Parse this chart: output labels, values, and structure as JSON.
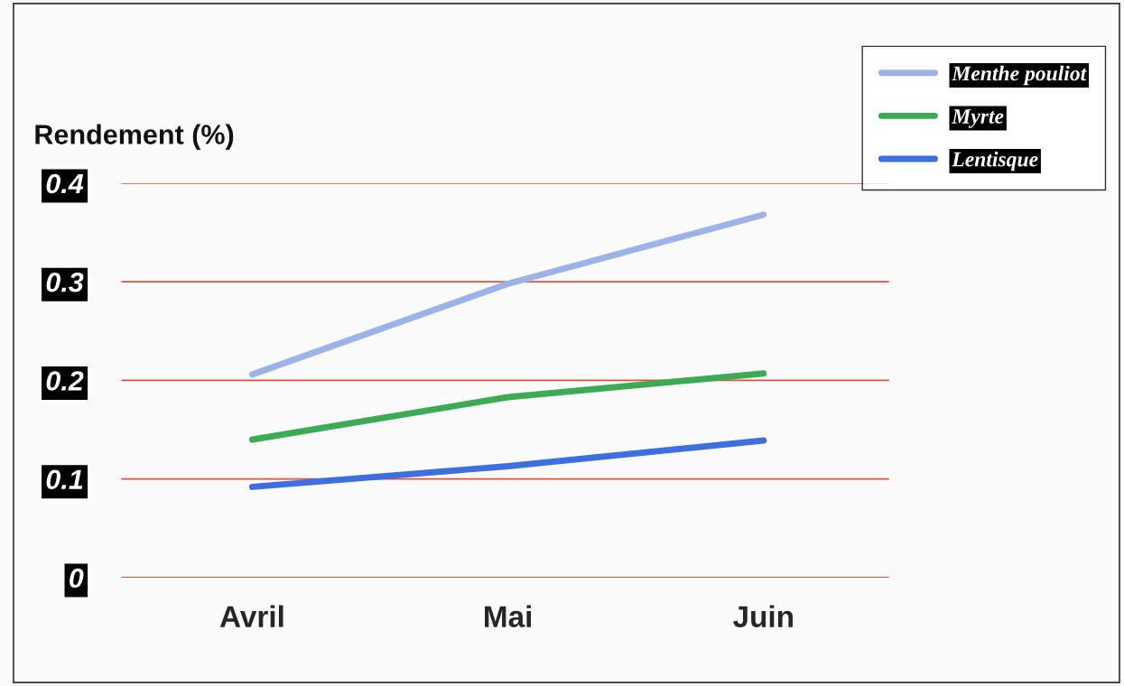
{
  "chart_data": {
    "type": "line",
    "ylabel": "Rendement (%)",
    "categories": [
      "Avril",
      "Mai",
      "Juin"
    ],
    "series": [
      {
        "name": "Menthe pouliot",
        "color": "#9db3e8",
        "values": [
          0.206,
          0.298,
          0.368
        ]
      },
      {
        "name": "Myrte",
        "color": "#3daa55",
        "values": [
          0.14,
          0.183,
          0.207
        ]
      },
      {
        "name": "Lentisque",
        "color": "#3d6fe0",
        "values": [
          0.092,
          0.113,
          0.139
        ]
      }
    ],
    "ylim": [
      0,
      0.4
    ],
    "yticks": [
      0,
      0.1,
      0.2,
      0.3,
      0.4
    ],
    "grid": "y",
    "legend": "top right",
    "marker": "none",
    "line_style": "solid"
  }
}
